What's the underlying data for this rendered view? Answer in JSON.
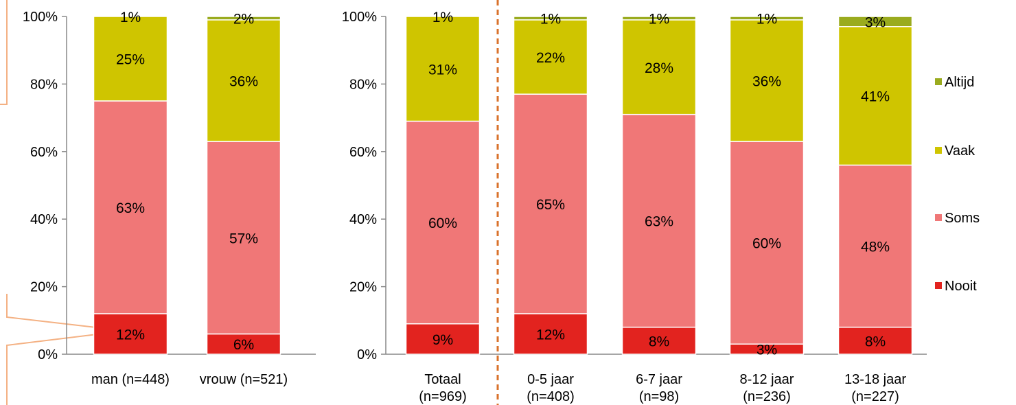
{
  "chart_data": [
    {
      "type": "bar",
      "stacked": true,
      "categories": [
        [
          "man (n=448)"
        ],
        [
          "vrouw (n=521)"
        ]
      ],
      "series": [
        {
          "name": "Nooit",
          "values": [
            12,
            6
          ],
          "labels": [
            "12%",
            "6%"
          ]
        },
        {
          "name": "Soms",
          "values": [
            63,
            57
          ],
          "labels": [
            "63%",
            "57%"
          ]
        },
        {
          "name": "Vaak",
          "values": [
            25,
            36
          ],
          "labels": [
            "25%",
            "36%"
          ]
        },
        {
          "name": "Altijd",
          "values": [
            1,
            2
          ],
          "labels": [
            "1%",
            "2%"
          ]
        }
      ],
      "yticks": [
        "0%",
        "20%",
        "40%",
        "60%",
        "80%",
        "100%"
      ],
      "ylim": [
        0,
        100
      ]
    },
    {
      "type": "bar",
      "stacked": true,
      "categories": [
        [
          "Totaal",
          "(n=969)"
        ],
        [
          "0-5 jaar",
          "(n=408)"
        ],
        [
          "6-7 jaar",
          "(n=98)"
        ],
        [
          "8-12 jaar",
          "(n=236)"
        ],
        [
          "13-18 jaar",
          "(n=227)"
        ]
      ],
      "series": [
        {
          "name": "Nooit",
          "values": [
            9,
            12,
            8,
            3,
            8
          ],
          "labels": [
            "9%",
            "12%",
            "8%",
            "3%",
            "8%"
          ]
        },
        {
          "name": "Soms",
          "values": [
            60,
            65,
            63,
            60,
            48
          ],
          "labels": [
            "60%",
            "65%",
            "63%",
            "60%",
            "48%"
          ]
        },
        {
          "name": "Vaak",
          "values": [
            31,
            22,
            28,
            36,
            41
          ],
          "labels": [
            "31%",
            "22%",
            "28%",
            "36%",
            "41%"
          ]
        },
        {
          "name": "Altijd",
          "values": [
            1,
            1,
            1,
            1,
            3
          ],
          "labels": [
            "1%",
            "1%",
            "1%",
            "1%",
            "3%"
          ]
        }
      ],
      "yticks": [
        "0%",
        "20%",
        "40%",
        "60%",
        "80%",
        "100%"
      ],
      "ylim": [
        0,
        100
      ]
    }
  ],
  "legend": {
    "placement": "right",
    "items": [
      {
        "name": "Altijd",
        "color": "#9aab1e"
      },
      {
        "name": "Vaak",
        "color": "#cfc500"
      },
      {
        "name": "Soms",
        "color": "#f07777"
      },
      {
        "name": "Nooit",
        "color": "#e2231f"
      }
    ]
  },
  "colors": {
    "Nooit": "#e2231f",
    "Soms": "#f07777",
    "Vaak": "#cfc500",
    "Altijd": "#9aab1e",
    "axis": "#888888",
    "divider": "#d9722b",
    "annotation": "#f4b183"
  }
}
